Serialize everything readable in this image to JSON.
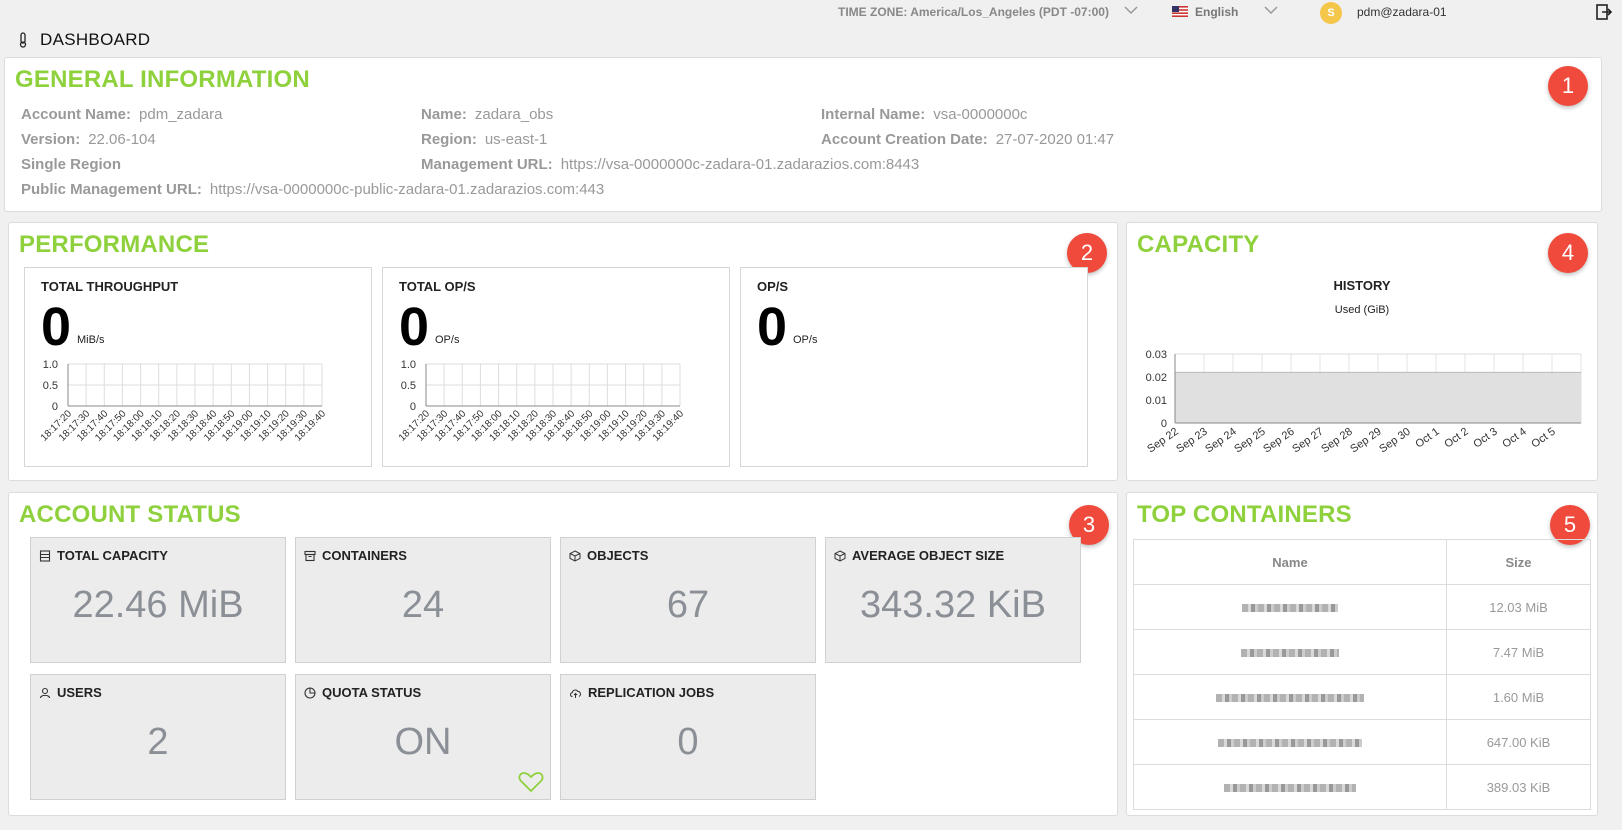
{
  "topbar": {
    "timezone": "TIME ZONE: America/Los_Angeles (PDT -07:00)",
    "language": "English",
    "avatar_initial": "S",
    "user": "pdm@zadara-01"
  },
  "page_title": "DASHBOARD",
  "general": {
    "title": "GENERAL INFORMATION",
    "badge": "1",
    "fields": {
      "account_name_label": "Account Name:",
      "account_name": "pdm_zadara",
      "version_label": "Version:",
      "version": "22.06-104",
      "single_region_label": "Single Region",
      "public_mgmt_label": "Public Management URL:",
      "public_mgmt": "https://vsa-0000000c-public-zadara-01.zadarazios.com:443",
      "name_label": "Name:",
      "name": "zadara_obs",
      "region_label": "Region:",
      "region": "us-east-1",
      "mgmt_label": "Management URL:",
      "mgmt": "https://vsa-0000000c-zadara-01.zadarazios.com:8443",
      "internal_label": "Internal Name:",
      "internal": "vsa-0000000c",
      "creation_label": "Account Creation Date:",
      "creation": "27-07-2020 01:47"
    }
  },
  "performance": {
    "title": "PERFORMANCE",
    "badge": "2",
    "cards": [
      {
        "label": "TOTAL THROUGHPUT",
        "value": "0",
        "unit": "MiB/s"
      },
      {
        "label": "TOTAL OP/S",
        "value": "0",
        "unit": "OP/s"
      },
      {
        "label": "OP/S",
        "value": "0",
        "unit": "OP/s"
      }
    ],
    "y_ticks": [
      "1.0",
      "0.5",
      "0"
    ],
    "x_ticks": [
      "18:17:20",
      "18:17:30",
      "18:17:40",
      "18:17:50",
      "18:18:00",
      "18:18:10",
      "18:18:20",
      "18:18:30",
      "18:18:40",
      "18:18:50",
      "18:19:00",
      "18:19:10",
      "18:19:20",
      "18:19:30",
      "18:19:40"
    ]
  },
  "capacity": {
    "title": "CAPACITY",
    "badge": "4",
    "chart_title": "HISTORY",
    "chart_subtitle": "Used (GiB)",
    "chart_data": {
      "type": "area",
      "title": "HISTORY",
      "ylabel": "Used (GiB)",
      "ylim": [
        0,
        0.03
      ],
      "y_ticks": [
        "0.03",
        "0.02",
        "0.01",
        "0"
      ],
      "categories": [
        "Sep 22",
        "Sep 23",
        "Sep 24",
        "Sep 25",
        "Sep 26",
        "Sep 27",
        "Sep 28",
        "Sep 29",
        "Sep 30",
        "Oct 1",
        "Oct 2",
        "Oct 3",
        "Oct 4",
        "Oct 5"
      ],
      "values": [
        0.022,
        0.022,
        0.022,
        0.022,
        0.022,
        0.022,
        0.022,
        0.022,
        0.022,
        0.022,
        0.022,
        0.022,
        0.022,
        0.022
      ]
    }
  },
  "account_status": {
    "title": "ACCOUNT STATUS",
    "badge": "3",
    "cards": [
      {
        "label": "TOTAL CAPACITY",
        "value": "22.46 MiB",
        "icon": "database-icon"
      },
      {
        "label": "CONTAINERS",
        "value": "24",
        "icon": "archive-icon"
      },
      {
        "label": "OBJECTS",
        "value": "67",
        "icon": "cube-icon"
      },
      {
        "label": "AVERAGE OBJECT SIZE",
        "value": "343.32 KiB",
        "icon": "cube-icon"
      },
      {
        "label": "USERS",
        "value": "2",
        "icon": "user-icon"
      },
      {
        "label": "QUOTA STATUS",
        "value": "ON",
        "icon": "pie-chart-icon"
      },
      {
        "label": "REPLICATION JOBS",
        "value": "0",
        "icon": "cloud-upload-icon"
      }
    ]
  },
  "top_containers": {
    "title": "TOP CONTAINERS",
    "badge": "5",
    "columns": [
      "Name",
      "Size"
    ],
    "rows": [
      {
        "size": "12.03 MiB"
      },
      {
        "size": "7.47 MiB"
      },
      {
        "size": "1.60 MiB"
      },
      {
        "size": "647.00 KiB"
      },
      {
        "size": "389.03 KiB"
      }
    ]
  }
}
